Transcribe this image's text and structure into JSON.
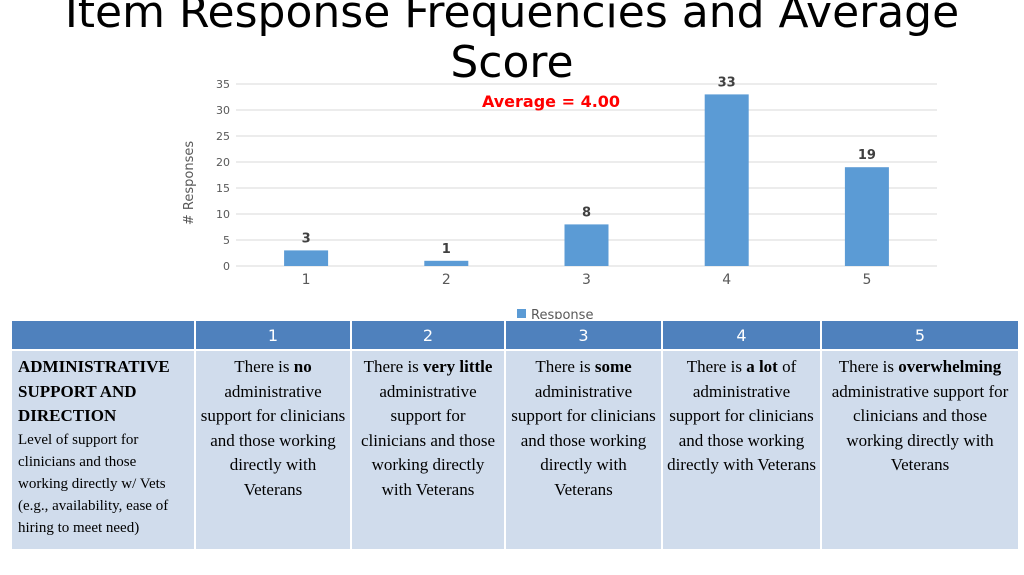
{
  "title": "Item Response Frequencies and Average Score",
  "chart_data": {
    "type": "bar",
    "categories": [
      "1",
      "2",
      "3",
      "4",
      "5"
    ],
    "series": [
      {
        "name": "Response",
        "values": [
          3,
          1,
          8,
          33,
          19
        ],
        "color": "#5b9bd5"
      }
    ],
    "ylabel": "# Responses",
    "xlabel": "",
    "ylim": [
      0,
      35
    ],
    "yticks": [
      0,
      5,
      10,
      15,
      20,
      25,
      30,
      35
    ],
    "grid": true,
    "legend": "bottom",
    "annotation": "Average = 4.00",
    "annotation_color": "#ff0000"
  },
  "table": {
    "headers": [
      "",
      "1",
      "2",
      "3",
      "4",
      "5"
    ],
    "header_color": "#4f81bd",
    "row_title": "ADMINISTRATIVE SUPPORT AND DIRECTION",
    "row_desc": "Level of support for clinicians and those working directly w/ Vets (e.g., availability, ease of hiring to meet need)",
    "cells": [
      {
        "pre": "There is ",
        "bold": "no",
        "post": " administrative support for clinicians and those working directly with Veterans"
      },
      {
        "pre": "There is ",
        "bold": "very little",
        "post": " administrative support for clinicians and those working directly with Veterans"
      },
      {
        "pre": "There is ",
        "bold": "some",
        "post": " administrative support for clinicians and those working directly with Veterans"
      },
      {
        "pre": "There is ",
        "bold": "a lot",
        "post": " of administrative support for clinicians and those working directly with Veterans"
      },
      {
        "pre": "There is ",
        "bold": "overwhelming",
        "post": " administrative support for clinicians and those working directly with Veterans"
      }
    ]
  }
}
